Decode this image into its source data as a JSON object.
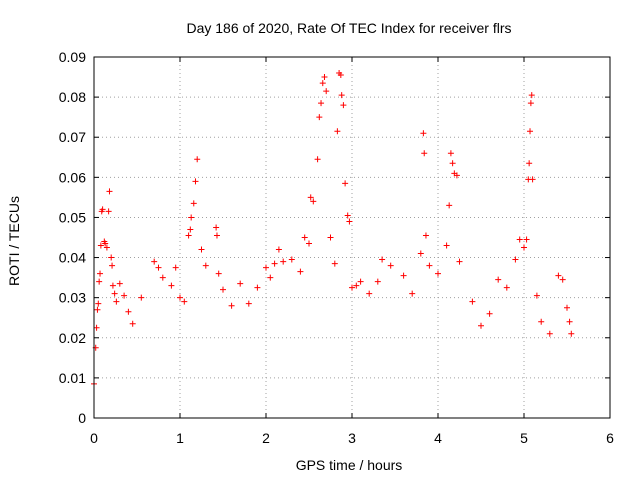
{
  "chart_data": {
    "type": "scatter",
    "title": "Day 186 of 2020, Rate Of TEC Index for receiver flrs",
    "xlabel": "GPS time / hours",
    "ylabel": "ROTI / TECUs",
    "xlim": [
      0,
      6
    ],
    "ylim": [
      0,
      0.09
    ],
    "x_ticks": [
      "0",
      "1",
      "2",
      "3",
      "4",
      "5",
      "6"
    ],
    "y_ticks": [
      "0",
      "0.01",
      "0.02",
      "0.03",
      "0.04",
      "0.05",
      "0.06",
      "0.07",
      "0.08",
      "0.09"
    ],
    "grid": true,
    "marker": "plus",
    "color": "#ff0000",
    "series": [
      {
        "name": "ROTI",
        "points": [
          [
            0.0,
            0.0085
          ],
          [
            0.02,
            0.0175
          ],
          [
            0.03,
            0.0225
          ],
          [
            0.04,
            0.027
          ],
          [
            0.05,
            0.0285
          ],
          [
            0.06,
            0.034
          ],
          [
            0.07,
            0.036
          ],
          [
            0.08,
            0.043
          ],
          [
            0.09,
            0.0515
          ],
          [
            0.1,
            0.052
          ],
          [
            0.12,
            0.044
          ],
          [
            0.13,
            0.0435
          ],
          [
            0.15,
            0.0425
          ],
          [
            0.17,
            0.0515
          ],
          [
            0.18,
            0.0565
          ],
          [
            0.2,
            0.04
          ],
          [
            0.21,
            0.038
          ],
          [
            0.22,
            0.033
          ],
          [
            0.24,
            0.031
          ],
          [
            0.26,
            0.029
          ],
          [
            0.3,
            0.0335
          ],
          [
            0.35,
            0.0305
          ],
          [
            0.4,
            0.0265
          ],
          [
            0.45,
            0.0235
          ],
          [
            0.55,
            0.03
          ],
          [
            0.7,
            0.039
          ],
          [
            0.75,
            0.0375
          ],
          [
            0.8,
            0.035
          ],
          [
            0.9,
            0.033
          ],
          [
            0.95,
            0.0375
          ],
          [
            1.0,
            0.03
          ],
          [
            1.05,
            0.029
          ],
          [
            1.1,
            0.0455
          ],
          [
            1.12,
            0.047
          ],
          [
            1.13,
            0.05
          ],
          [
            1.16,
            0.0535
          ],
          [
            1.18,
            0.059
          ],
          [
            1.2,
            0.0645
          ],
          [
            1.25,
            0.042
          ],
          [
            1.3,
            0.038
          ],
          [
            1.42,
            0.0475
          ],
          [
            1.43,
            0.0455
          ],
          [
            1.45,
            0.036
          ],
          [
            1.5,
            0.032
          ],
          [
            1.6,
            0.028
          ],
          [
            1.7,
            0.0335
          ],
          [
            1.8,
            0.0285
          ],
          [
            1.9,
            0.0325
          ],
          [
            2.0,
            0.0375
          ],
          [
            2.05,
            0.035
          ],
          [
            2.1,
            0.0385
          ],
          [
            2.15,
            0.042
          ],
          [
            2.2,
            0.039
          ],
          [
            2.3,
            0.0395
          ],
          [
            2.4,
            0.0365
          ],
          [
            2.45,
            0.045
          ],
          [
            2.5,
            0.0435
          ],
          [
            2.52,
            0.055
          ],
          [
            2.55,
            0.054
          ],
          [
            2.6,
            0.0645
          ],
          [
            2.62,
            0.075
          ],
          [
            2.64,
            0.0785
          ],
          [
            2.66,
            0.0835
          ],
          [
            2.68,
            0.085
          ],
          [
            2.7,
            0.0815
          ],
          [
            2.75,
            0.045
          ],
          [
            2.8,
            0.0385
          ],
          [
            2.83,
            0.0715
          ],
          [
            2.85,
            0.086
          ],
          [
            2.87,
            0.0855
          ],
          [
            2.88,
            0.0805
          ],
          [
            2.9,
            0.078
          ],
          [
            2.92,
            0.0585
          ],
          [
            2.95,
            0.0505
          ],
          [
            2.97,
            0.049
          ],
          [
            3.0,
            0.0325
          ],
          [
            3.05,
            0.033
          ],
          [
            3.1,
            0.034
          ],
          [
            3.2,
            0.031
          ],
          [
            3.3,
            0.034
          ],
          [
            3.35,
            0.0395
          ],
          [
            3.45,
            0.038
          ],
          [
            3.6,
            0.0355
          ],
          [
            3.7,
            0.031
          ],
          [
            3.8,
            0.041
          ],
          [
            3.83,
            0.071
          ],
          [
            3.84,
            0.066
          ],
          [
            3.86,
            0.0455
          ],
          [
            3.9,
            0.038
          ],
          [
            4.0,
            0.036
          ],
          [
            4.1,
            0.043
          ],
          [
            4.13,
            0.053
          ],
          [
            4.15,
            0.066
          ],
          [
            4.17,
            0.0635
          ],
          [
            4.19,
            0.061
          ],
          [
            4.22,
            0.0605
          ],
          [
            4.25,
            0.039
          ],
          [
            4.4,
            0.029
          ],
          [
            4.5,
            0.023
          ],
          [
            4.6,
            0.026
          ],
          [
            4.7,
            0.0345
          ],
          [
            4.8,
            0.0325
          ],
          [
            4.9,
            0.0395
          ],
          [
            4.95,
            0.0445
          ],
          [
            5.0,
            0.0425
          ],
          [
            5.03,
            0.0445
          ],
          [
            5.05,
            0.0595
          ],
          [
            5.06,
            0.0635
          ],
          [
            5.07,
            0.0715
          ],
          [
            5.08,
            0.0785
          ],
          [
            5.09,
            0.0805
          ],
          [
            5.1,
            0.0595
          ],
          [
            5.15,
            0.0305
          ],
          [
            5.2,
            0.024
          ],
          [
            5.3,
            0.021
          ],
          [
            5.4,
            0.0355
          ],
          [
            5.45,
            0.0345
          ],
          [
            5.5,
            0.0275
          ],
          [
            5.53,
            0.024
          ],
          [
            5.55,
            0.021
          ]
        ]
      }
    ]
  }
}
